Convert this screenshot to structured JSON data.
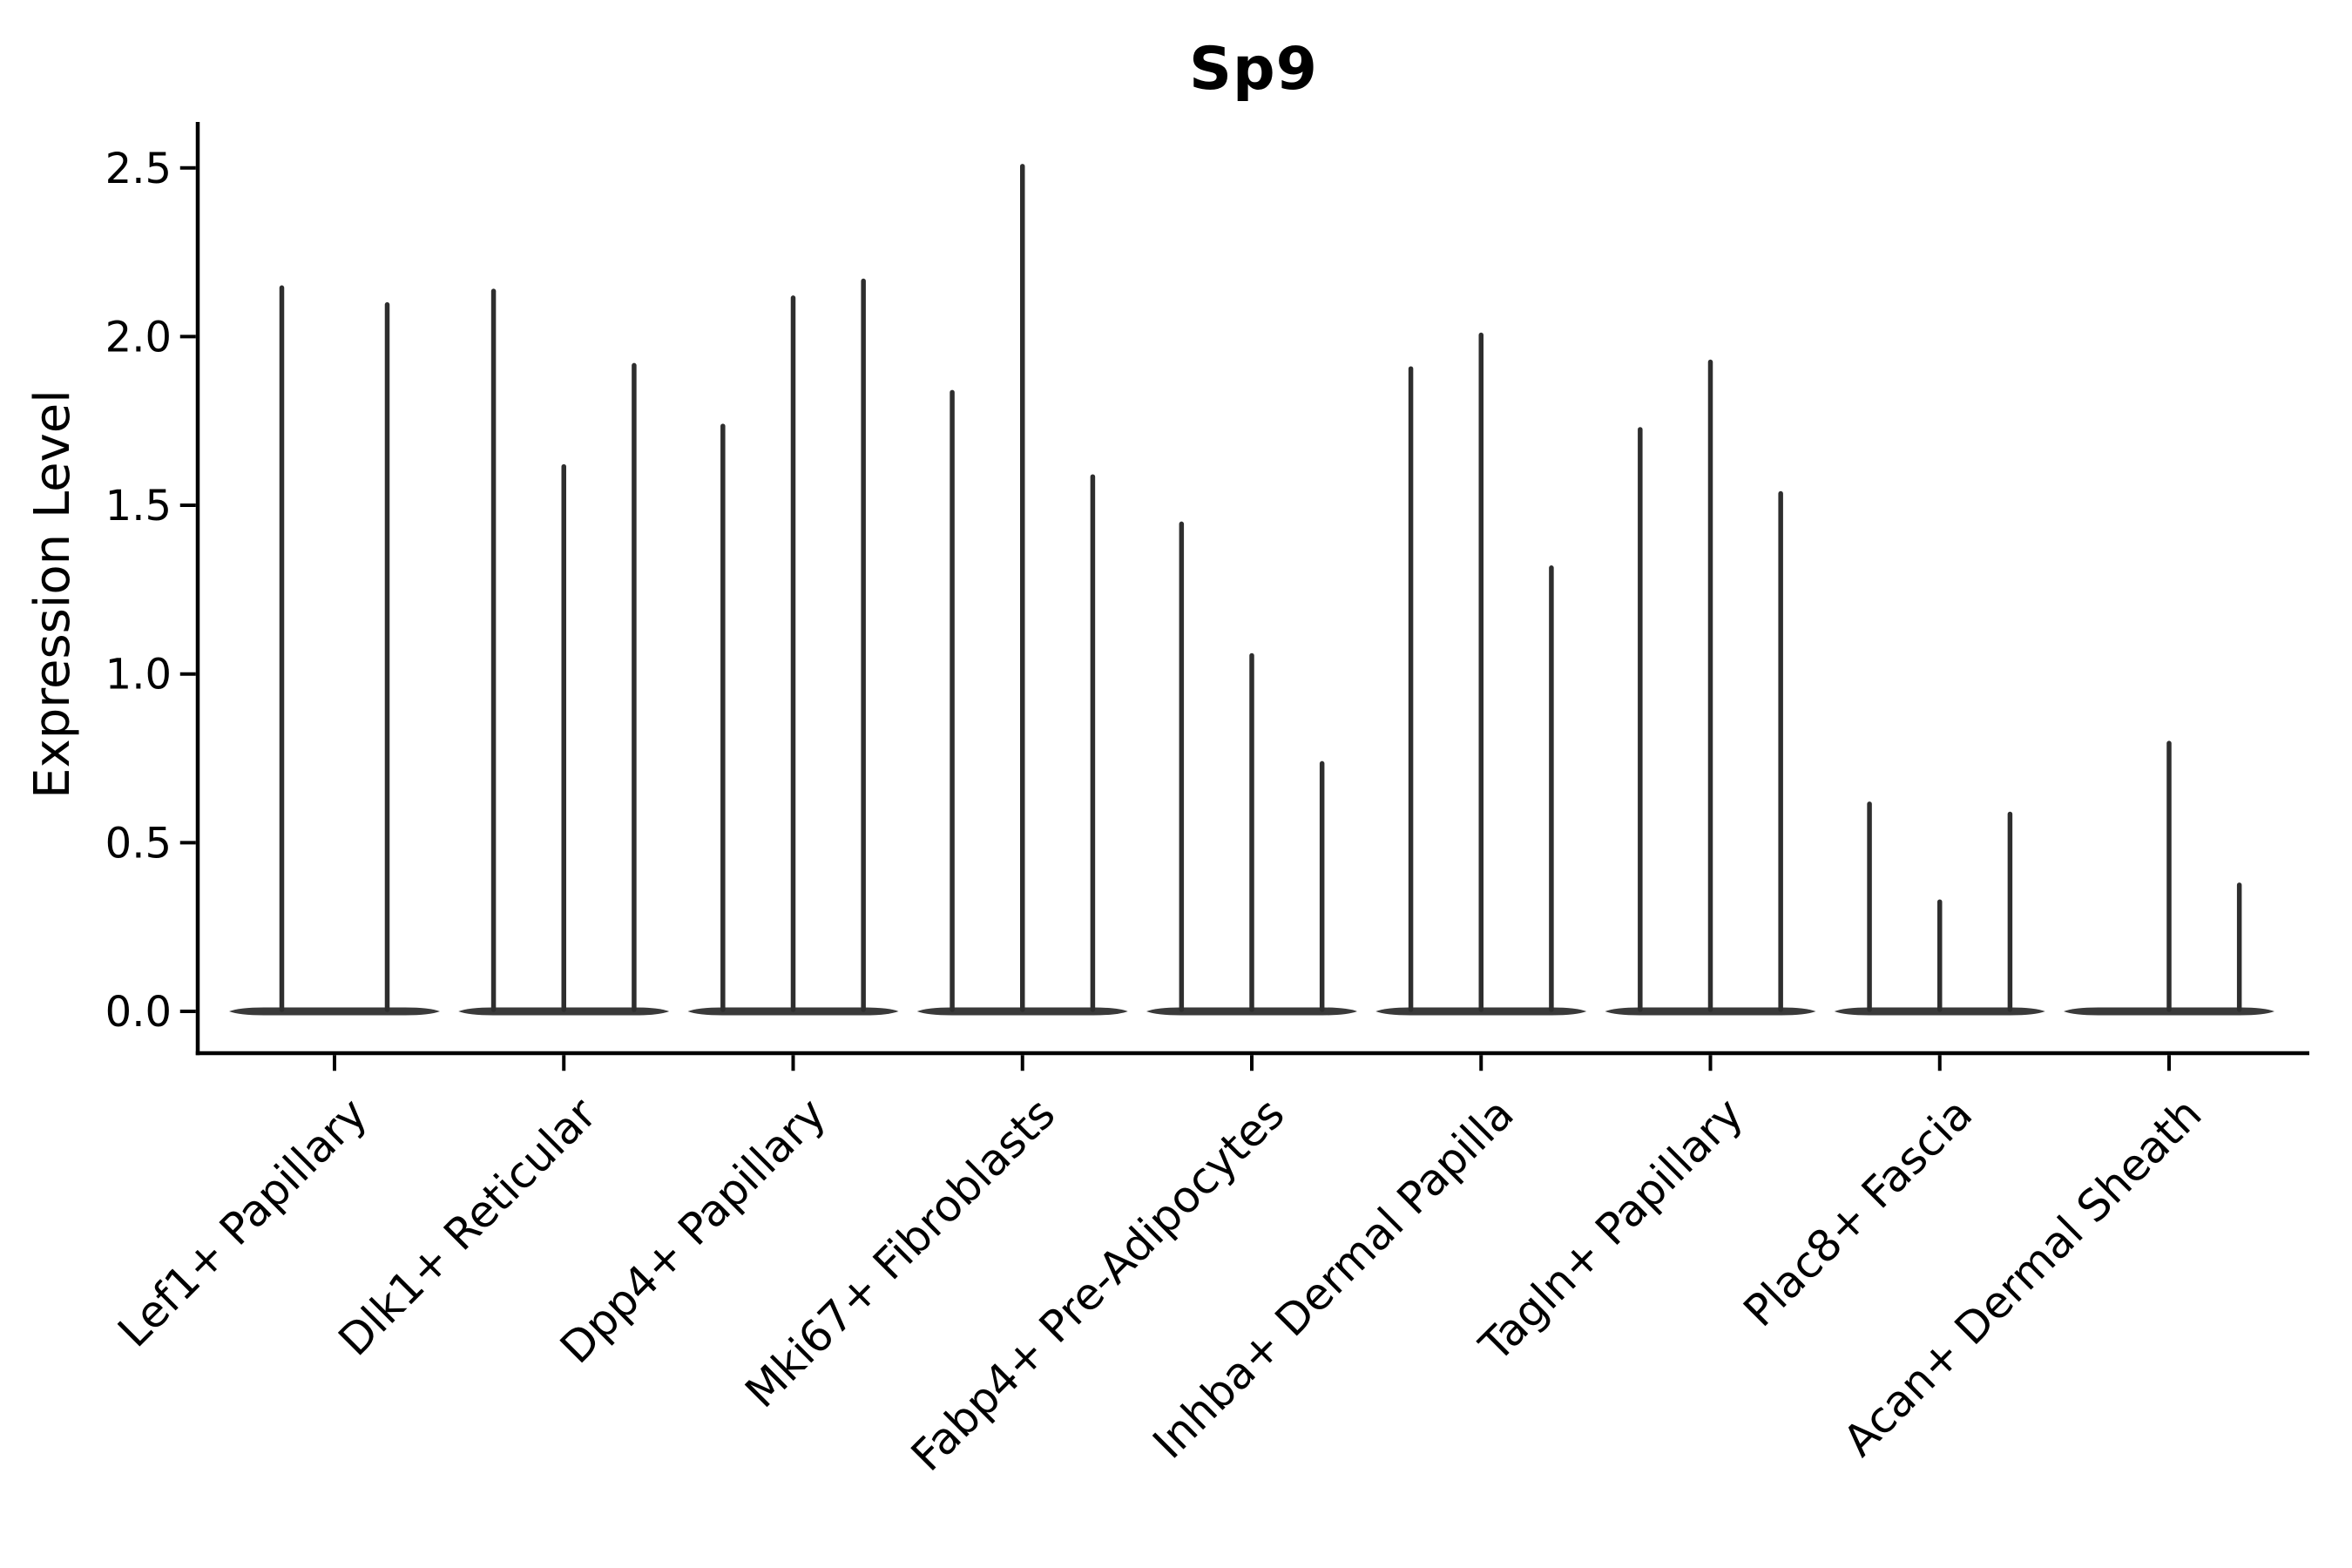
{
  "page": {
    "background": "#ffffff"
  },
  "chart_data": {
    "type": "violin",
    "title": "Sp9",
    "ylabel": "Expression Level",
    "xlabel": "",
    "yticks": [
      0.0,
      0.5,
      1.0,
      1.5,
      2.0,
      2.5
    ],
    "ytick_labels": [
      "0.0",
      "0.5",
      "1.0",
      "1.5",
      "2.0",
      "2.5"
    ],
    "ylim": [
      -0.12,
      2.63
    ],
    "grid": false,
    "legend": "none",
    "categories": [
      "Lef1+ Papillary",
      "Dlk1+ Reticular",
      "Dpp4+ Papillary",
      "Mki67+ Fibroblasts",
      "Fabp4+ Pre-Adipocytes",
      "Inhba+ Dermal Papilla",
      "Tagln+ Papillary",
      "Plac8+ Fascia",
      "Acan+ Dermal Sheath"
    ],
    "groups": [
      {
        "label": "Lef1+ Papillary",
        "violin_max": [
          2.15,
          2.1
        ]
      },
      {
        "label": "Dlk1+ Reticular",
        "violin_max": [
          2.14,
          1.62,
          1.92
        ]
      },
      {
        "label": "Dpp4+ Papillary",
        "violin_max": [
          1.74,
          2.12,
          2.17
        ]
      },
      {
        "label": "Mki67+ Fibroblasts",
        "violin_max": [
          1.84,
          2.51,
          1.59
        ]
      },
      {
        "label": "Fabp4+ Pre-Adipocytes",
        "violin_max": [
          1.45,
          1.06,
          0.74
        ]
      },
      {
        "label": "Inhba+ Dermal Papilla",
        "violin_max": [
          1.91,
          2.01,
          1.32
        ]
      },
      {
        "label": "Tagln+ Papillary",
        "violin_max": [
          1.73,
          1.93,
          1.54
        ]
      },
      {
        "label": "Plac8+ Fascia",
        "violin_max": [
          0.62,
          0.33,
          0.59
        ]
      },
      {
        "label": "Acan+ Dermal Sheath",
        "violin_max": [
          0,
          0.8,
          0.38
        ]
      }
    ],
    "colors": {
      "violin_fill": "#3a3a3a",
      "violin_edge": "#2e2e2e",
      "axis": "#000000",
      "text": "#000000",
      "background": "#ffffff"
    }
  }
}
